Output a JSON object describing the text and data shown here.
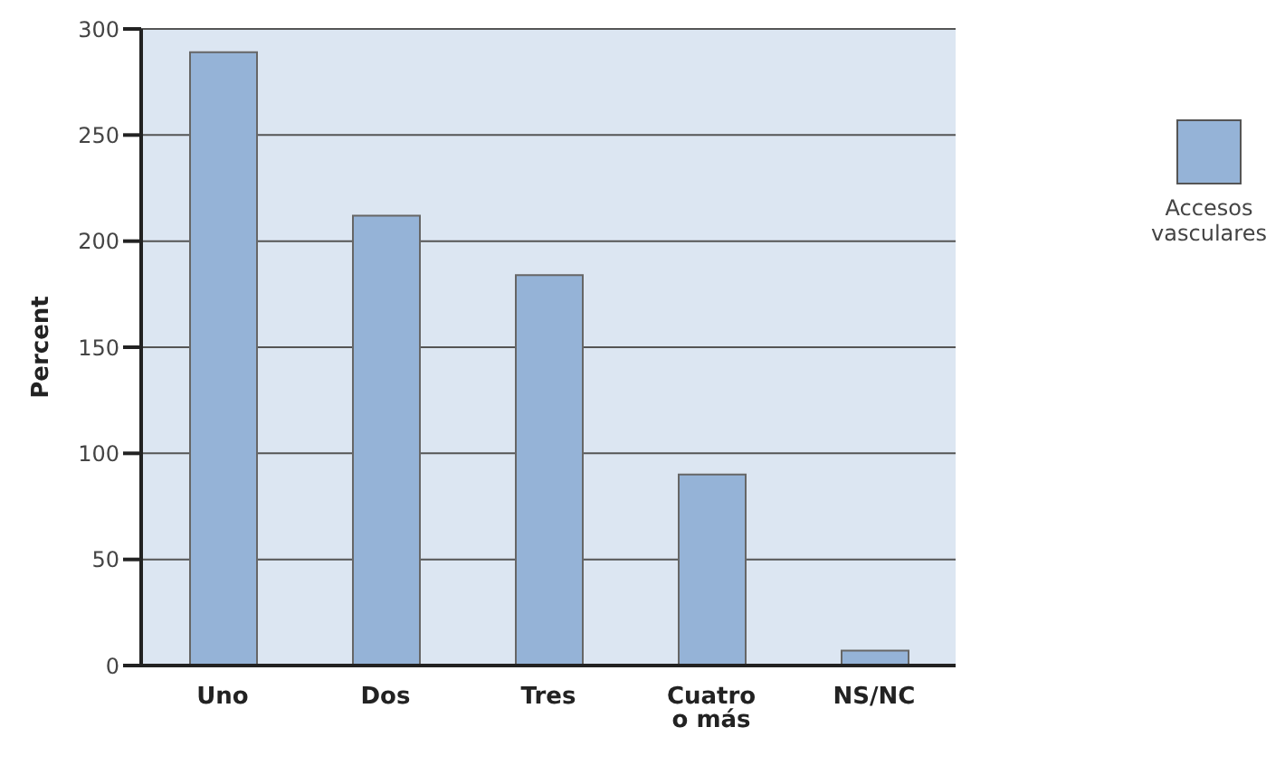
{
  "chart_data": {
    "type": "bar",
    "ylabel": "Percent",
    "categories": [
      "Uno",
      "Dos",
      "Tres",
      "Cuatro o más",
      "NS/NC"
    ],
    "series": [
      {
        "name": "Accesos vasculares",
        "color": "#95b3d7",
        "values": [
          289,
          212,
          184,
          90,
          7
        ]
      }
    ],
    "ylim": [
      0,
      300
    ],
    "yticks": [
      0,
      50,
      100,
      150,
      200,
      250,
      300
    ],
    "grid": "y",
    "legend": "right"
  }
}
